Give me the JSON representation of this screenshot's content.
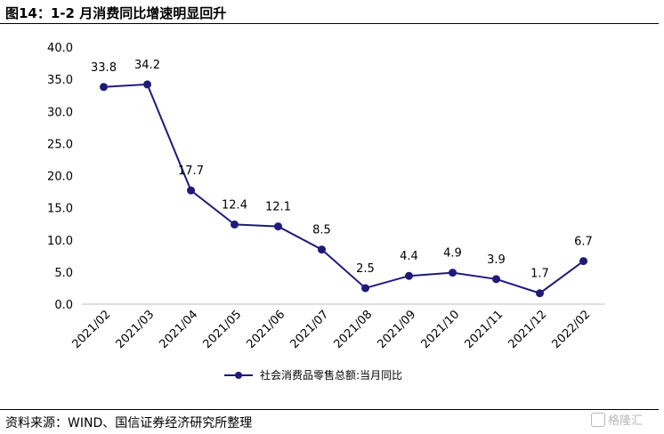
{
  "header": {
    "title": "图14：1-2 月消费同比增速明显回升"
  },
  "footer": {
    "source": "资料来源：WIND、国信证券经济研究所整理"
  },
  "watermark": {
    "text": "格隆汇"
  },
  "colors": {
    "series": "#1f1a7a",
    "axis": "#bfbfbf"
  },
  "chart_data": {
    "type": "line",
    "categories": [
      "2021/02",
      "2021/03",
      "2021/04",
      "2021/05",
      "2021/06",
      "2021/07",
      "2021/08",
      "2021/09",
      "2021/10",
      "2021/11",
      "2021/12",
      "2022/02"
    ],
    "series": [
      {
        "name": "社会消费品零售总额:当月同比",
        "values": [
          33.8,
          34.2,
          17.7,
          12.4,
          12.1,
          8.5,
          2.5,
          4.4,
          4.9,
          3.9,
          1.7,
          6.7
        ]
      }
    ],
    "data_labels": [
      "33.8",
      "34.2",
      "17.7",
      "12.4",
      "12.1",
      "8.5",
      "2.5",
      "4.4",
      "4.9",
      "3.9",
      "1.7",
      "6.7"
    ],
    "y_ticks": [
      "0.0",
      "5.0",
      "10.0",
      "15.0",
      "20.0",
      "25.0",
      "30.0",
      "35.0",
      "40.0"
    ],
    "ylim": [
      0,
      40
    ],
    "grid": false,
    "legend": "bottom"
  }
}
